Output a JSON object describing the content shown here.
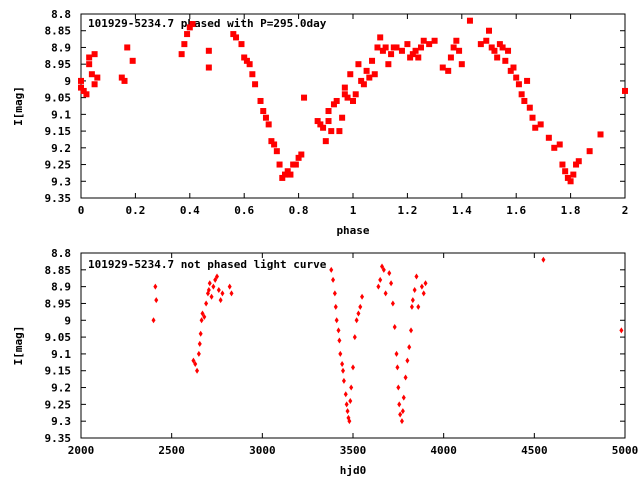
{
  "chart_data": [
    {
      "type": "scatter",
      "title": "101929-5234.7 phased with P=295.0day",
      "xlabel": "phase",
      "ylabel": "I[mag]",
      "xlim": [
        0,
        2
      ],
      "ylim": [
        9.35,
        8.8
      ],
      "y_inverted": true,
      "grid": false,
      "marker": "filled-square",
      "color": "#ff0000",
      "x_ticks": [
        "0",
        "0.2",
        "0.4",
        "0.6",
        "0.8",
        "1",
        "1.2",
        "1.4",
        "1.6",
        "1.8",
        "2"
      ],
      "y_ticks": [
        "8.8",
        "8.85",
        "8.9",
        "8.95",
        "9",
        "9.05",
        "9.1",
        "9.15",
        "9.2",
        "9.25",
        "9.3",
        "9.35"
      ],
      "x_tick_values": [
        0,
        0.2,
        0.4,
        0.6,
        0.8,
        1.0,
        1.2,
        1.4,
        1.6,
        1.8,
        2.0
      ],
      "y_tick_values": [
        8.8,
        8.85,
        8.9,
        8.95,
        9.0,
        9.05,
        9.1,
        9.15,
        9.2,
        9.25,
        9.3,
        9.35
      ],
      "points": [
        [
          0.0,
          9.0
        ],
        [
          0.0,
          9.02
        ],
        [
          0.01,
          9.03
        ],
        [
          0.02,
          9.04
        ],
        [
          0.03,
          8.93
        ],
        [
          0.03,
          8.95
        ],
        [
          0.04,
          8.98
        ],
        [
          0.05,
          9.01
        ],
        [
          0.05,
          8.92
        ],
        [
          0.06,
          8.99
        ],
        [
          0.15,
          8.99
        ],
        [
          0.16,
          9.0
        ],
        [
          0.17,
          8.9
        ],
        [
          0.19,
          8.94
        ],
        [
          0.37,
          8.92
        ],
        [
          0.38,
          8.89
        ],
        [
          0.39,
          8.86
        ],
        [
          0.4,
          8.84
        ],
        [
          0.41,
          8.83
        ],
        [
          0.47,
          8.91
        ],
        [
          0.47,
          8.96
        ],
        [
          0.56,
          8.86
        ],
        [
          0.57,
          8.87
        ],
        [
          0.59,
          8.89
        ],
        [
          0.6,
          8.93
        ],
        [
          0.61,
          8.94
        ],
        [
          0.62,
          8.95
        ],
        [
          0.63,
          8.98
        ],
        [
          0.64,
          9.01
        ],
        [
          0.66,
          9.06
        ],
        [
          0.67,
          9.09
        ],
        [
          0.68,
          9.11
        ],
        [
          0.69,
          9.13
        ],
        [
          0.7,
          9.18
        ],
        [
          0.71,
          9.19
        ],
        [
          0.72,
          9.21
        ],
        [
          0.73,
          9.25
        ],
        [
          0.74,
          9.29
        ],
        [
          0.75,
          9.28
        ],
        [
          0.76,
          9.27
        ],
        [
          0.77,
          9.28
        ],
        [
          0.78,
          9.25
        ],
        [
          0.79,
          9.25
        ],
        [
          0.8,
          9.23
        ],
        [
          0.81,
          9.22
        ],
        [
          0.82,
          9.05
        ],
        [
          0.87,
          9.12
        ],
        [
          0.88,
          9.13
        ],
        [
          0.89,
          9.14
        ],
        [
          0.9,
          9.18
        ],
        [
          0.91,
          9.12
        ],
        [
          0.91,
          9.09
        ],
        [
          0.92,
          9.15
        ],
        [
          0.93,
          9.07
        ],
        [
          0.94,
          9.06
        ],
        [
          0.95,
          9.15
        ],
        [
          0.96,
          9.11
        ],
        [
          0.97,
          9.04
        ],
        [
          0.97,
          9.02
        ],
        [
          0.98,
          9.05
        ],
        [
          0.99,
          8.98
        ],
        [
          1.0,
          9.06
        ],
        [
          1.01,
          9.04
        ],
        [
          1.02,
          8.95
        ],
        [
          1.03,
          9.0
        ],
        [
          1.04,
          9.01
        ],
        [
          1.05,
          8.97
        ],
        [
          1.06,
          8.99
        ],
        [
          1.07,
          8.94
        ],
        [
          1.08,
          8.98
        ],
        [
          1.09,
          8.9
        ],
        [
          1.1,
          8.87
        ],
        [
          1.11,
          8.91
        ],
        [
          1.12,
          8.9
        ],
        [
          1.13,
          8.95
        ],
        [
          1.14,
          8.92
        ],
        [
          1.15,
          8.9
        ],
        [
          1.16,
          8.9
        ],
        [
          1.18,
          8.91
        ],
        [
          1.2,
          8.89
        ],
        [
          1.21,
          8.93
        ],
        [
          1.22,
          8.92
        ],
        [
          1.23,
          8.91
        ],
        [
          1.24,
          8.93
        ],
        [
          1.25,
          8.9
        ],
        [
          1.26,
          8.88
        ],
        [
          1.28,
          8.89
        ],
        [
          1.3,
          8.88
        ],
        [
          1.33,
          8.96
        ],
        [
          1.35,
          8.97
        ],
        [
          1.36,
          8.93
        ],
        [
          1.37,
          8.9
        ],
        [
          1.38,
          8.88
        ],
        [
          1.39,
          8.91
        ],
        [
          1.4,
          8.95
        ],
        [
          1.43,
          8.82
        ],
        [
          1.47,
          8.89
        ],
        [
          1.49,
          8.88
        ],
        [
          1.5,
          8.85
        ],
        [
          1.51,
          8.9
        ],
        [
          1.52,
          8.91
        ],
        [
          1.53,
          8.93
        ],
        [
          1.54,
          8.89
        ],
        [
          1.55,
          8.9
        ],
        [
          1.56,
          8.94
        ],
        [
          1.57,
          8.91
        ],
        [
          1.58,
          8.97
        ],
        [
          1.59,
          8.96
        ],
        [
          1.6,
          8.99
        ],
        [
          1.61,
          9.01
        ],
        [
          1.62,
          9.04
        ],
        [
          1.63,
          9.06
        ],
        [
          1.64,
          9.0
        ],
        [
          1.65,
          9.08
        ],
        [
          1.66,
          9.11
        ],
        [
          1.67,
          9.14
        ],
        [
          1.69,
          9.13
        ],
        [
          1.72,
          9.17
        ],
        [
          1.74,
          9.2
        ],
        [
          1.76,
          9.19
        ],
        [
          1.77,
          9.25
        ],
        [
          1.78,
          9.27
        ],
        [
          1.79,
          9.29
        ],
        [
          1.8,
          9.3
        ],
        [
          1.81,
          9.28
        ],
        [
          1.82,
          9.25
        ],
        [
          1.83,
          9.24
        ],
        [
          1.87,
          9.21
        ],
        [
          1.91,
          9.16
        ],
        [
          2.0,
          9.03
        ]
      ]
    },
    {
      "type": "scatter",
      "title": "101929-5234.7 not phased light curve",
      "xlabel": "hjd0",
      "ylabel": "I[mag]",
      "xlim": [
        2000,
        5000
      ],
      "ylim": [
        9.35,
        8.8
      ],
      "y_inverted": true,
      "grid": false,
      "marker": "small-diamond",
      "color": "#ff0000",
      "x_ticks": [
        "2000",
        "2500",
        "3000",
        "3500",
        "4000",
        "4500",
        "5000"
      ],
      "y_ticks": [
        "8.8",
        "8.85",
        "8.9",
        "8.95",
        "9",
        "9.05",
        "9.1",
        "9.15",
        "9.2",
        "9.25",
        "9.3",
        "9.35"
      ],
      "x_tick_values": [
        2000,
        2500,
        3000,
        3500,
        4000,
        4500,
        5000
      ],
      "y_tick_values": [
        8.8,
        8.85,
        8.9,
        8.95,
        9.0,
        9.05,
        9.1,
        9.15,
        9.2,
        9.25,
        9.3,
        9.35
      ],
      "points": [
        [
          2400,
          9.0
        ],
        [
          2410,
          8.9
        ],
        [
          2415,
          8.94
        ],
        [
          2620,
          9.12
        ],
        [
          2630,
          9.13
        ],
        [
          2640,
          9.15
        ],
        [
          2650,
          9.1
        ],
        [
          2655,
          9.07
        ],
        [
          2660,
          9.04
        ],
        [
          2665,
          9.0
        ],
        [
          2670,
          8.98
        ],
        [
          2680,
          8.99
        ],
        [
          2690,
          8.95
        ],
        [
          2700,
          8.92
        ],
        [
          2705,
          8.91
        ],
        [
          2710,
          8.89
        ],
        [
          2720,
          8.93
        ],
        [
          2730,
          8.9
        ],
        [
          2740,
          8.88
        ],
        [
          2750,
          8.87
        ],
        [
          2760,
          8.91
        ],
        [
          2770,
          8.94
        ],
        [
          2780,
          8.92
        ],
        [
          2820,
          8.9
        ],
        [
          2830,
          8.92
        ],
        [
          3380,
          8.85
        ],
        [
          3390,
          8.88
        ],
        [
          3400,
          8.92
        ],
        [
          3405,
          8.96
        ],
        [
          3410,
          9.0
        ],
        [
          3420,
          9.03
        ],
        [
          3425,
          9.06
        ],
        [
          3430,
          9.1
        ],
        [
          3440,
          9.13
        ],
        [
          3445,
          9.15
        ],
        [
          3450,
          9.18
        ],
        [
          3460,
          9.22
        ],
        [
          3465,
          9.25
        ],
        [
          3470,
          9.27
        ],
        [
          3475,
          9.29
        ],
        [
          3480,
          9.3
        ],
        [
          3485,
          9.24
        ],
        [
          3490,
          9.2
        ],
        [
          3500,
          9.14
        ],
        [
          3510,
          9.05
        ],
        [
          3520,
          9.0
        ],
        [
          3530,
          8.98
        ],
        [
          3540,
          8.96
        ],
        [
          3550,
          8.93
        ],
        [
          3640,
          8.9
        ],
        [
          3650,
          8.88
        ],
        [
          3660,
          8.84
        ],
        [
          3670,
          8.85
        ],
        [
          3680,
          8.92
        ],
        [
          3700,
          8.86
        ],
        [
          3710,
          8.89
        ],
        [
          3720,
          8.95
        ],
        [
          3730,
          9.02
        ],
        [
          3740,
          9.1
        ],
        [
          3745,
          9.14
        ],
        [
          3750,
          9.2
        ],
        [
          3755,
          9.25
        ],
        [
          3760,
          9.28
        ],
        [
          3770,
          9.3
        ],
        [
          3775,
          9.27
        ],
        [
          3780,
          9.23
        ],
        [
          3790,
          9.17
        ],
        [
          3800,
          9.12
        ],
        [
          3810,
          9.08
        ],
        [
          3820,
          9.03
        ],
        [
          3825,
          8.96
        ],
        [
          3830,
          8.94
        ],
        [
          3840,
          8.91
        ],
        [
          3850,
          8.87
        ],
        [
          3860,
          8.96
        ],
        [
          3880,
          8.9
        ],
        [
          3890,
          8.92
        ],
        [
          3900,
          8.89
        ],
        [
          4550,
          8.82
        ],
        [
          4980,
          9.03
        ]
      ]
    }
  ]
}
